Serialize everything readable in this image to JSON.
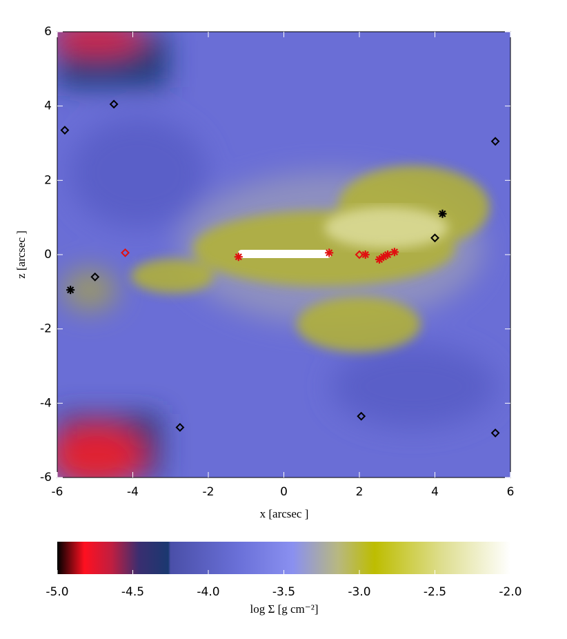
{
  "chart_data": {
    "type": "scatter",
    "x_label": "x [arcsec ]",
    "y_label": "z [arcsec ]",
    "xlim": [
      -6,
      6
    ],
    "ylim": [
      -6,
      6
    ],
    "xticks": [
      -6,
      -4,
      -2,
      0,
      2,
      4,
      6
    ],
    "yticks": [
      -6,
      -4,
      -2,
      0,
      2,
      4,
      6
    ],
    "series": [
      {
        "color": "#000000",
        "marker": "diamond",
        "x": [
          -5.8,
          -4.5,
          5.6,
          4.0,
          -5.0,
          -2.75,
          2.05,
          5.6
        ],
        "y": [
          3.35,
          4.05,
          3.05,
          0.45,
          -0.6,
          -4.65,
          -4.35,
          -4.8
        ]
      },
      {
        "color": "#e01010",
        "marker": "diamond",
        "x": [
          -4.2,
          2.0
        ],
        "y": [
          0.05,
          0.0
        ]
      },
      {
        "color": "#000000",
        "marker": "asterisk",
        "x": [
          -5.65,
          4.2
        ],
        "y": [
          -0.95,
          1.1
        ]
      },
      {
        "color": "#e01010",
        "marker": "asterisk",
        "x": [
          -1.2,
          1.2,
          2.16,
          2.53,
          2.64,
          2.75,
          2.93
        ],
        "y": [
          -0.06,
          0.05,
          0.0,
          -0.13,
          -0.06,
          0.0,
          0.07
        ]
      }
    ],
    "colorbar": {
      "label": "log Σ [g cm⁻²]",
      "lim": [
        -5,
        -2
      ],
      "ticks": [
        {
          "value": -5,
          "label": "-5.0"
        },
        {
          "value": -4.5,
          "label": "-4.5"
        },
        {
          "value": -4,
          "label": "-4.0"
        },
        {
          "value": -3.5,
          "label": "-3.5"
        },
        {
          "value": -3,
          "label": "-3.0"
        },
        {
          "value": -2.5,
          "label": "-2.5"
        },
        {
          "value": -2,
          "label": "-2.0"
        }
      ]
    }
  }
}
